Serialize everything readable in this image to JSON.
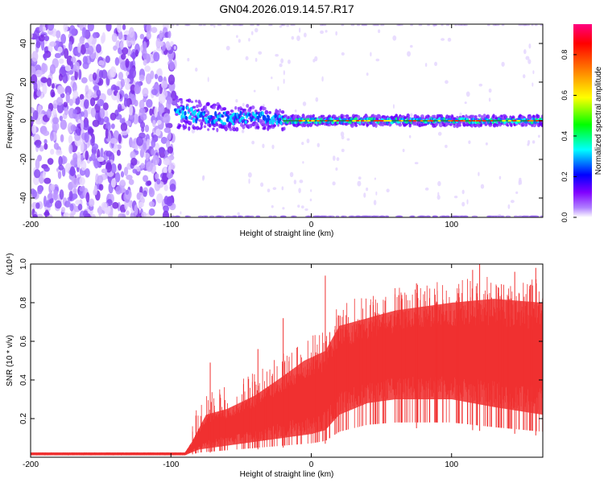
{
  "title": "GN04.2026.019.14.57.R17",
  "chart_data": [
    {
      "type": "heatmap",
      "xlabel": "Height of straight line (km)",
      "ylabel": "Frequency (Hz)",
      "xlim": [
        -200,
        165
      ],
      "ylim": [
        -50,
        50
      ],
      "xticks": [
        "-200",
        "-100",
        "0",
        "100"
      ],
      "xtick_values": [
        -200,
        -100,
        0,
        100
      ],
      "yticks": [
        "-40",
        "-20",
        "0",
        "20",
        "40"
      ],
      "ytick_values": [
        -40,
        -20,
        0,
        20,
        40
      ],
      "colorbar": {
        "label": "Normalized spectral amplitude",
        "range": [
          0,
          0.95
        ],
        "ticks": [
          "0.0",
          "0.2",
          "0.4",
          "0.6",
          "0.8"
        ],
        "tick_values": [
          0,
          0.2,
          0.4,
          0.6,
          0.8
        ],
        "colors": [
          "#ffffff",
          "#8000ff",
          "#0000ff",
          "#00ffff",
          "#00ff00",
          "#ffff00",
          "#ff8000",
          "#ff0000",
          "#ff0080"
        ]
      },
      "noise_region_x": [
        -200,
        -100
      ],
      "signal_line": [
        {
          "x": -95,
          "freq": 4
        },
        {
          "x": -80,
          "freq": 3
        },
        {
          "x": -60,
          "freq": 1
        },
        {
          "x": -40,
          "freq": 2
        },
        {
          "x": -20,
          "freq": 0
        },
        {
          "x": 0,
          "freq": 0
        },
        {
          "x": 165,
          "freq": 0
        }
      ],
      "grid": false
    },
    {
      "type": "line",
      "xlabel": "Height of straight line (km)",
      "ylabel": "SNR (10 * v/v)",
      "y_multiplier": "(x10⁴)",
      "xlim": [
        -200,
        165
      ],
      "ylim": [
        0,
        1.0
      ],
      "xticks": [
        "-200",
        "-100",
        "0",
        "100"
      ],
      "xtick_values": [
        -200,
        -100,
        0,
        100
      ],
      "yticks": [
        "0.2",
        "0.4",
        "0.6",
        "0.8",
        "1.0"
      ],
      "ytick_values": [
        0.2,
        0.4,
        0.6,
        0.8,
        1.0
      ],
      "series": [
        {
          "color": "#f03030",
          "baseline": [
            {
              "x": -200,
              "y": 0.01
            },
            {
              "x": -90,
              "y": 0.01
            },
            {
              "x": -80,
              "y": 0.04
            },
            {
              "x": -60,
              "y": 0.06
            },
            {
              "x": -40,
              "y": 0.08
            },
            {
              "x": -20,
              "y": 0.1
            },
            {
              "x": 0,
              "y": 0.12
            },
            {
              "x": 10,
              "y": 0.14
            },
            {
              "x": 20,
              "y": 0.22
            },
            {
              "x": 40,
              "y": 0.28
            },
            {
              "x": 60,
              "y": 0.3
            },
            {
              "x": 100,
              "y": 0.3
            },
            {
              "x": 130,
              "y": 0.26
            },
            {
              "x": 165,
              "y": 0.22
            }
          ],
          "upper": [
            {
              "x": -200,
              "y": 0.025
            },
            {
              "x": -90,
              "y": 0.025
            },
            {
              "x": -85,
              "y": 0.08
            },
            {
              "x": -75,
              "y": 0.22
            },
            {
              "x": -60,
              "y": 0.25
            },
            {
              "x": -40,
              "y": 0.32
            },
            {
              "x": -20,
              "y": 0.42
            },
            {
              "x": -5,
              "y": 0.5
            },
            {
              "x": 10,
              "y": 0.55
            },
            {
              "x": 20,
              "y": 0.68
            },
            {
              "x": 40,
              "y": 0.72
            },
            {
              "x": 60,
              "y": 0.76
            },
            {
              "x": 100,
              "y": 0.8
            },
            {
              "x": 130,
              "y": 0.82
            },
            {
              "x": 165,
              "y": 0.8
            }
          ],
          "peaks": [
            {
              "x": -72,
              "y": 0.49
            },
            {
              "x": -38,
              "y": 0.56
            },
            {
              "x": -20,
              "y": 0.72
            },
            {
              "x": 10,
              "y": 0.94
            },
            {
              "x": 75,
              "y": 0.9
            },
            {
              "x": 115,
              "y": 0.97
            },
            {
              "x": 120,
              "y": 1.0
            },
            {
              "x": 145,
              "y": 0.96
            },
            {
              "x": 160,
              "y": 0.98
            }
          ]
        }
      ],
      "grid": false
    }
  ]
}
